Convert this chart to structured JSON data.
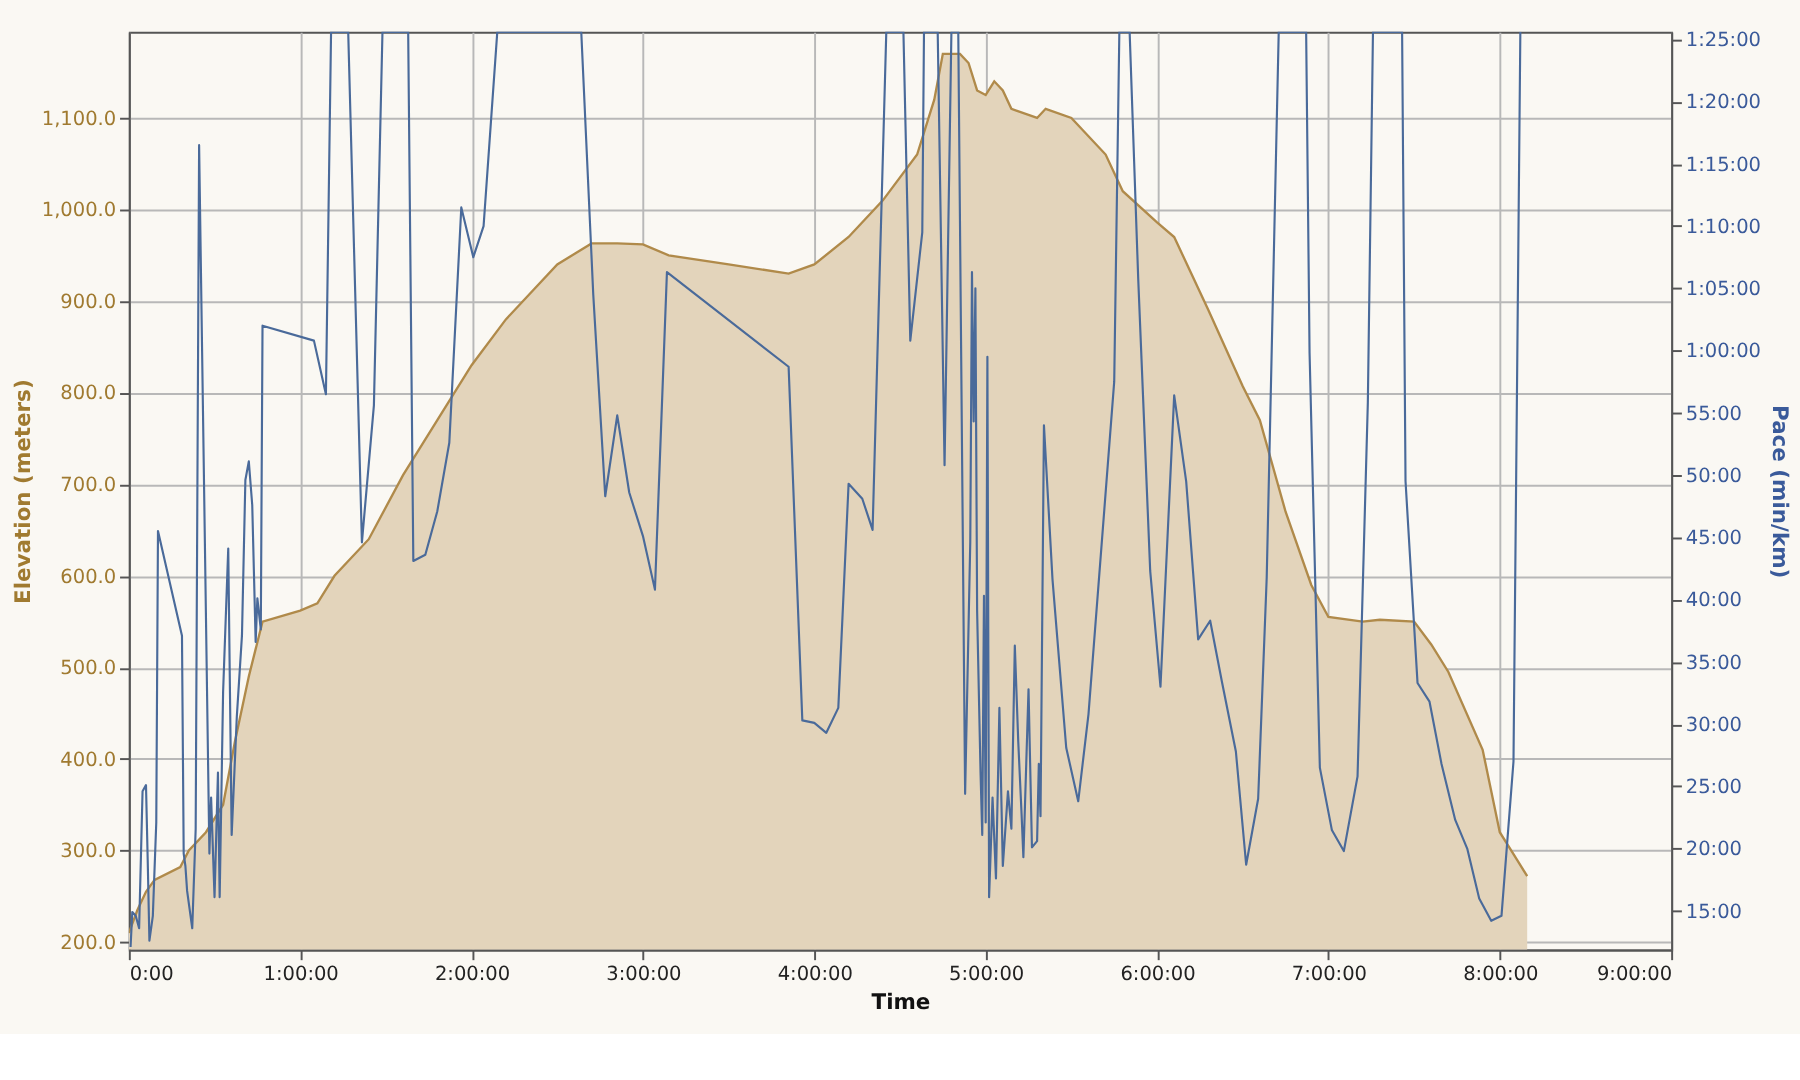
{
  "chart_data": {
    "type": "area",
    "xlabel": "Time",
    "ylabel": "Elevation (meters)",
    "y2label": "Pace (min/km)",
    "xlim": [
      0,
      9
    ],
    "xticks": [
      {
        "value": 0,
        "label": "0:00"
      },
      {
        "value": 1,
        "label": "1:00:00"
      },
      {
        "value": 2,
        "label": "2:00:00"
      },
      {
        "value": 3,
        "label": "3:00:00"
      },
      {
        "value": 4,
        "label": "4:00:00"
      },
      {
        "value": 5,
        "label": "5:00:00"
      },
      {
        "value": 6,
        "label": "6:00:00"
      },
      {
        "value": 7,
        "label": "7:00:00"
      },
      {
        "value": 8,
        "label": "8:00:00"
      },
      {
        "value": 9,
        "label": "9:00:00"
      }
    ],
    "ylim": [
      192,
      1194
    ],
    "yticks": [
      {
        "value": 200,
        "label": "200.0"
      },
      {
        "value": 300,
        "label": "300.0"
      },
      {
        "value": 400,
        "label": "400.0"
      },
      {
        "value": 500,
        "label": "500.0"
      },
      {
        "value": 600,
        "label": "600.0"
      },
      {
        "value": 700,
        "label": "700.0"
      },
      {
        "value": 800,
        "label": "800.0"
      },
      {
        "value": 900,
        "label": "900.0"
      },
      {
        "value": 1000,
        "label": "1,000.0"
      },
      {
        "value": 1100,
        "label": "1,100.0"
      }
    ],
    "y2lim": [
      11.9,
      85.6
    ],
    "y2ticks": [
      {
        "value": 15,
        "label": "15:00"
      },
      {
        "value": 20,
        "label": "20:00"
      },
      {
        "value": 25,
        "label": "25:00"
      },
      {
        "value": 30,
        "label": "30:00"
      },
      {
        "value": 35,
        "label": "35:00"
      },
      {
        "value": 40,
        "label": "40:00"
      },
      {
        "value": 45,
        "label": "45:00"
      },
      {
        "value": 50,
        "label": "50:00"
      },
      {
        "value": 55,
        "label": "55:00"
      },
      {
        "value": 60,
        "label": "1:00:00"
      },
      {
        "value": 65,
        "label": "1:05:00"
      },
      {
        "value": 70,
        "label": "1:10:00"
      },
      {
        "value": 75,
        "label": "1:15:00"
      },
      {
        "value": 80,
        "label": "1:20:00"
      },
      {
        "value": 85,
        "label": "1:25:00"
      }
    ],
    "grid": true,
    "series": [
      {
        "axis": "y",
        "color": "#b08a4a",
        "x": [
          0,
          0.05,
          0.1,
          0.15,
          0.3,
          0.35,
          0.45,
          0.55,
          0.62,
          0.7,
          0.78,
          1.0,
          1.1,
          1.2,
          1.4,
          1.6,
          1.8,
          2.0,
          2.2,
          2.5,
          2.7,
          2.85,
          3.0,
          3.15,
          3.5,
          3.85,
          4.0,
          4.2,
          4.4,
          4.6,
          4.7,
          4.75,
          4.85,
          4.9,
          4.95,
          5.0,
          5.05,
          5.1,
          5.15,
          5.3,
          5.35,
          5.5,
          5.7,
          5.8,
          6.0,
          6.1,
          6.3,
          6.5,
          6.6,
          6.75,
          6.9,
          7.0,
          7.2,
          7.3,
          7.5,
          7.6,
          7.7,
          7.9,
          8.0,
          8.1,
          8.16
        ],
        "values": [
          210,
          235,
          255,
          268,
          282,
          300,
          320,
          350,
          420,
          490,
          550,
          562,
          570,
          600,
          640,
          710,
          770,
          830,
          880,
          940,
          963,
          963,
          962,
          950,
          940,
          930,
          940,
          970,
          1010,
          1060,
          1120,
          1170,
          1170,
          1160,
          1130,
          1125,
          1140,
          1130,
          1110,
          1100,
          1110,
          1100,
          1060,
          1020,
          986,
          970,
          890,
          807,
          770,
          670,
          590,
          555,
          550,
          552,
          550,
          525,
          495,
          410,
          320,
          290,
          272
        ]
      },
      {
        "type": "line",
        "axis": "y2",
        "color": "#4a6a9a",
        "x": [
          0.01,
          0.02,
          0.04,
          0.06,
          0.08,
          0.1,
          0.11,
          0.12,
          0.14,
          0.16,
          0.17,
          0.31,
          0.32,
          0.33,
          0.34,
          0.36,
          0.37,
          0.39,
          0.41,
          0.47,
          0.48,
          0.5,
          0.52,
          0.53,
          0.55,
          0.58,
          0.6,
          0.63,
          0.66,
          0.68,
          0.7,
          0.72,
          0.74,
          0.75,
          0.77,
          0.78,
          1.08,
          1.15,
          1.18,
          1.28,
          1.36,
          1.43,
          1.48,
          1.63,
          1.66,
          1.73,
          1.8,
          1.87,
          1.94,
          2.01,
          2.07,
          2.15,
          2.64,
          2.71,
          2.78,
          2.85,
          2.92,
          3.0,
          3.07,
          3.14,
          3.85,
          3.93,
          4.0,
          4.07,
          4.14,
          4.2,
          4.28,
          4.34,
          4.42,
          4.52,
          4.56,
          4.63,
          4.64,
          4.72,
          4.76,
          4.8,
          4.84,
          4.88,
          4.91,
          4.92,
          4.93,
          4.94,
          4.95,
          4.97,
          4.98,
          4.99,
          5.0,
          5.01,
          5.02,
          5.04,
          5.06,
          5.08,
          5.1,
          5.13,
          5.15,
          5.17,
          5.19,
          5.21,
          5.22,
          5.25,
          5.27,
          5.3,
          5.31,
          5.32,
          5.34,
          5.39,
          5.47,
          5.54,
          5.6,
          5.75,
          5.78,
          5.84,
          5.89,
          5.96,
          6.02,
          6.1,
          6.17,
          6.24,
          6.31,
          6.38,
          6.46,
          6.52,
          6.59,
          6.64,
          6.71,
          6.87,
          6.89,
          6.95,
          7.02,
          7.09,
          7.17,
          7.23,
          7.26,
          7.43,
          7.45,
          7.52,
          7.59,
          7.66,
          7.74,
          7.81,
          7.88,
          7.95,
          8.01,
          8.08,
          8.12
        ],
        "values": [
          12.1,
          14.9,
          14.6,
          13.6,
          24.6,
          25.1,
          19.1,
          12.6,
          14.6,
          22.1,
          45.5,
          37.1,
          19.6,
          18.6,
          16.6,
          14.6,
          13.6,
          21.6,
          76.5,
          19.6,
          24.1,
          16.1,
          26.1,
          16.1,
          32.6,
          44.1,
          21.1,
          30.6,
          37.1,
          49.6,
          51.1,
          47.6,
          36.6,
          40.1,
          37.6,
          62.0,
          60.8,
          56.5,
          85.6,
          85.6,
          44.6,
          55.6,
          85.6,
          85.6,
          43.1,
          43.6,
          47.1,
          52.6,
          71.5,
          67.5,
          70.0,
          85.6,
          85.6,
          64.5,
          48.3,
          54.8,
          48.6,
          45.1,
          40.8,
          66.3,
          58.7,
          30.3,
          30.1,
          29.3,
          31.3,
          49.3,
          48.1,
          45.6,
          85.6,
          85.6,
          60.8,
          69.5,
          85.6,
          85.6,
          50.8,
          85.6,
          85.6,
          24.4,
          44.6,
          66.3,
          54.3,
          65.0,
          39.1,
          26.1,
          21.1,
          40.3,
          22.1,
          59.5,
          16.1,
          24.1,
          17.6,
          31.3,
          18.6,
          24.6,
          21.6,
          36.3,
          28.6,
          22.6,
          19.3,
          32.8,
          20.1,
          20.6,
          26.8,
          22.6,
          54.0,
          41.6,
          28.1,
          23.8,
          30.8,
          57.5,
          85.6,
          85.6,
          65.8,
          42.3,
          33.0,
          56.4,
          49.5,
          36.8,
          38.3,
          33.3,
          27.8,
          18.7,
          24.0,
          41.8,
          85.6,
          85.6,
          59.8,
          26.5,
          21.5,
          19.8,
          25.8,
          55.8,
          85.6,
          85.6,
          49.5,
          33.3,
          31.8,
          26.8,
          22.3,
          20.0,
          16.0,
          14.2,
          14.6,
          27.0,
          85.6
        ]
      }
    ]
  }
}
